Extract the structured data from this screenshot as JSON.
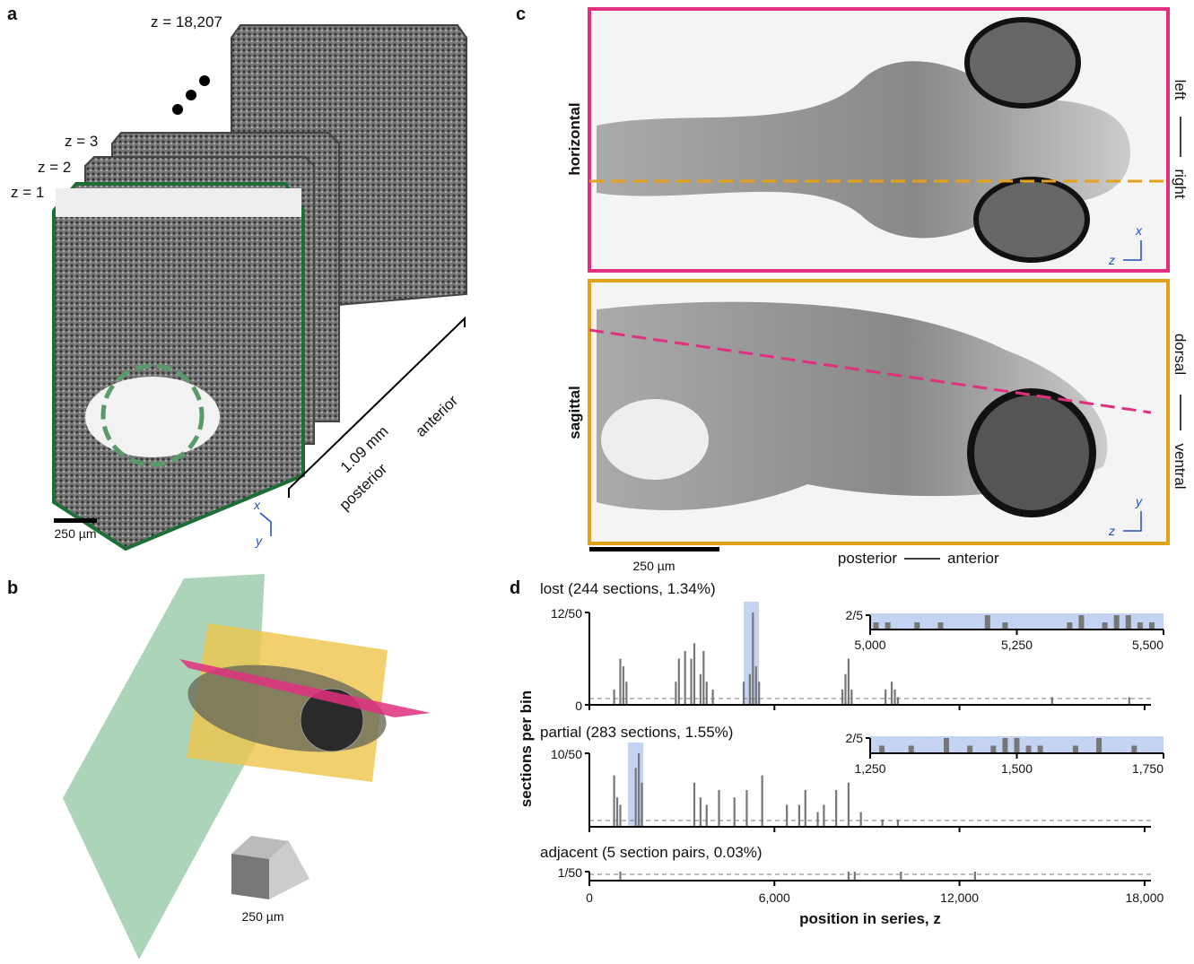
{
  "panel_a": {
    "label": "a",
    "slices": [
      "z = 1",
      "z = 2",
      "z = 3",
      "z = 18,207"
    ],
    "length": "1.09 mm",
    "posterior": "posterior",
    "anterior": "anterior",
    "scale": "250 µm",
    "axis_x": "x",
    "axis_y": "y"
  },
  "panel_b": {
    "label": "b",
    "scale": "250 µm"
  },
  "panel_c": {
    "label": "c",
    "horizontal": "horizontal",
    "sagittal": "sagittal",
    "left": "left",
    "right": "right",
    "dorsal": "dorsal",
    "ventral": "ventral",
    "scale": "250 µm",
    "posterior": "posterior",
    "anterior": "anterior",
    "h_axes": [
      "x",
      "z"
    ],
    "s_axes": [
      "y",
      "z"
    ]
  },
  "panel_d": {
    "label": "d",
    "ylabel": "sections per bin",
    "xlabel": "position in series, z",
    "xlim": [
      0,
      18207
    ],
    "xticks": [
      0,
      {
        "value": 6000,
        "label": "6,000"
      },
      {
        "value": 12000,
        "label": "12,000"
      },
      {
        "value": 18000,
        "label": "18,000"
      }
    ],
    "histograms": [
      {
        "title": "lost (244 sections, 1.34%)",
        "ylim": [
          0,
          12
        ],
        "yticks": [
          0,
          {
            "value": 12,
            "label": "12/50"
          }
        ],
        "x": [
          800,
          1000,
          1100,
          1200,
          2800,
          2900,
          3100,
          3300,
          3400,
          3600,
          3700,
          3800,
          4000,
          5000,
          5200,
          5300,
          5400,
          5500,
          8200,
          8300,
          8400,
          8500,
          9600,
          9800,
          9900,
          10000,
          15000,
          17500
        ],
        "values": [
          2,
          6,
          5,
          3,
          3,
          6,
          7,
          6,
          8,
          4,
          7,
          3,
          2,
          3,
          4,
          12,
          5,
          3,
          2,
          4,
          6,
          2,
          2,
          3,
          2,
          1,
          1,
          1
        ],
        "inset": {
          "xlim": [
            5000,
            5500
          ],
          "xticks": [
            {
              "value": 5000,
              "label": "5,000"
            },
            {
              "value": 5250,
              "label": "5,250"
            },
            {
              "value": 5500,
              "label": "5,500"
            }
          ],
          "ylim": [
            0,
            2
          ],
          "yticks": [
            {
              "value": 2,
              "label": "2/5"
            }
          ],
          "x": [
            5010,
            5030,
            5080,
            5120,
            5200,
            5230,
            5340,
            5360,
            5400,
            5420,
            5440,
            5460,
            5480
          ],
          "values": [
            1,
            1,
            1,
            1,
            2,
            1,
            1,
            2,
            1,
            2,
            2,
            1,
            1
          ]
        }
      },
      {
        "title": "partial (283 sections, 1.55%)",
        "ylim": [
          0,
          10
        ],
        "yticks": [
          {
            "value": 10,
            "label": "10/50"
          }
        ],
        "x": [
          800,
          900,
          1000,
          1500,
          1600,
          1700,
          3400,
          3600,
          3800,
          4200,
          4700,
          5100,
          5600,
          6400,
          6800,
          7000,
          7400,
          7600,
          8000,
          8400,
          8800,
          9500,
          10000
        ],
        "values": [
          7,
          4,
          3,
          8,
          10,
          6,
          6,
          4,
          3,
          5,
          4,
          5,
          7,
          3,
          3,
          5,
          2,
          3,
          5,
          6,
          2,
          1,
          1
        ],
        "inset": {
          "xlim": [
            1250,
            1750
          ],
          "xticks": [
            {
              "value": 1250,
              "label": "1,250"
            },
            {
              "value": 1500,
              "label": "1,500"
            },
            {
              "value": 1750,
              "label": "1,750"
            }
          ],
          "ylim": [
            0,
            2
          ],
          "yticks": [
            {
              "value": 2,
              "label": "2/5"
            }
          ],
          "x": [
            1270,
            1320,
            1380,
            1420,
            1460,
            1480,
            1500,
            1520,
            1540,
            1600,
            1640,
            1700
          ],
          "values": [
            1,
            1,
            2,
            1,
            1,
            2,
            2,
            1,
            1,
            1,
            2,
            1
          ]
        }
      },
      {
        "title": "adjacent (5 section pairs, 0.03%)",
        "ylim": [
          0,
          1
        ],
        "yticks": [
          {
            "value": 1,
            "label": "1/50"
          }
        ],
        "x": [
          1000,
          8400,
          8600,
          10100,
          12500
        ],
        "values": [
          1,
          1,
          1,
          1,
          1
        ]
      }
    ]
  }
}
